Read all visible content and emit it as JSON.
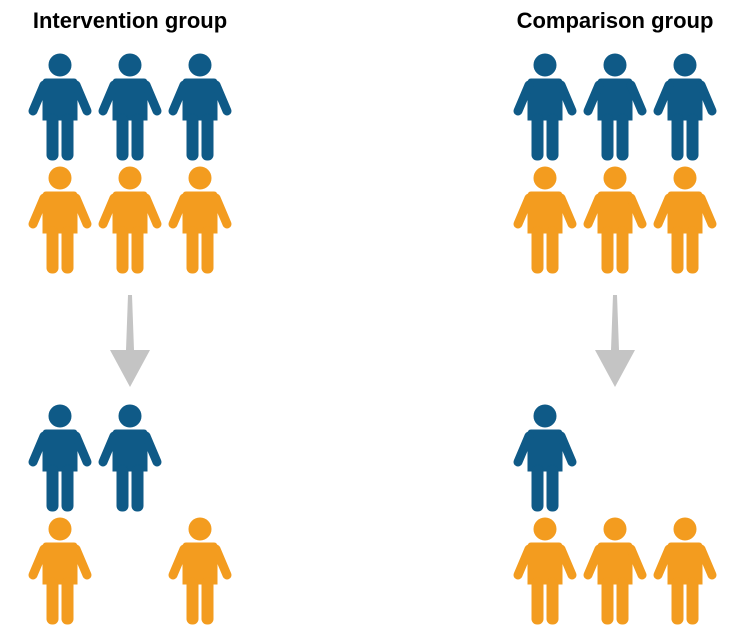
{
  "groups": [
    {
      "title": "Intervention group"
    },
    {
      "title": "Comparison group"
    }
  ]
}
